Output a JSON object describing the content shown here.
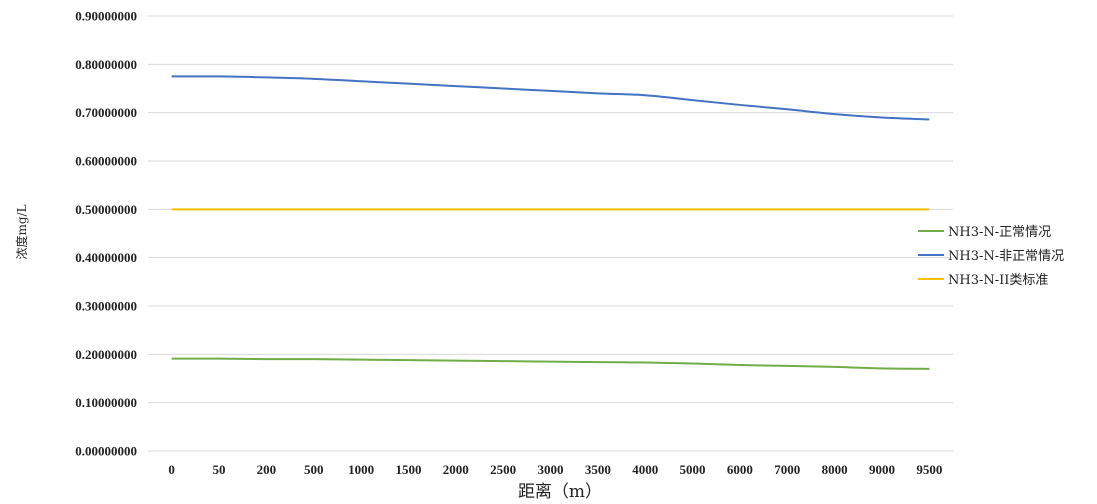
{
  "chart_data": {
    "type": "line",
    "title": "",
    "xlabel": "距离（m）",
    "ylabel": "浓度mg/L",
    "categories": [
      "0",
      "50",
      "200",
      "500",
      "1000",
      "1500",
      "2000",
      "2500",
      "3000",
      "3500",
      "4000",
      "5000",
      "6000",
      "7000",
      "8000",
      "9000",
      "9500"
    ],
    "ylim": [
      0,
      0.9
    ],
    "yticks": [
      "0.00000000",
      "0.10000000",
      "0.20000000",
      "0.30000000",
      "0.40000000",
      "0.50000000",
      "0.60000000",
      "0.70000000",
      "0.80000000",
      "0.90000000"
    ],
    "grid": true,
    "legend_position": "right",
    "series": [
      {
        "name": "NH3-N-正常情况",
        "color": "#70AD47",
        "values": [
          0.191,
          0.191,
          0.19,
          0.19,
          0.189,
          0.188,
          0.187,
          0.186,
          0.185,
          0.184,
          0.183,
          0.181,
          0.178,
          0.176,
          0.174,
          0.171,
          0.17
        ]
      },
      {
        "name": "NH3-N-非正常情况",
        "color": "#4472C4",
        "values": [
          0.775,
          0.775,
          0.773,
          0.77,
          0.765,
          0.76,
          0.755,
          0.75,
          0.745,
          0.74,
          0.736,
          0.726,
          0.716,
          0.707,
          0.697,
          0.69,
          0.686
        ]
      },
      {
        "name": "NH3-N-II类标准",
        "color": "#FFC000",
        "values": [
          0.5,
          0.5,
          0.5,
          0.5,
          0.5,
          0.5,
          0.5,
          0.5,
          0.5,
          0.5,
          0.5,
          0.5,
          0.5,
          0.5,
          0.5,
          0.5,
          0.5
        ]
      }
    ]
  }
}
